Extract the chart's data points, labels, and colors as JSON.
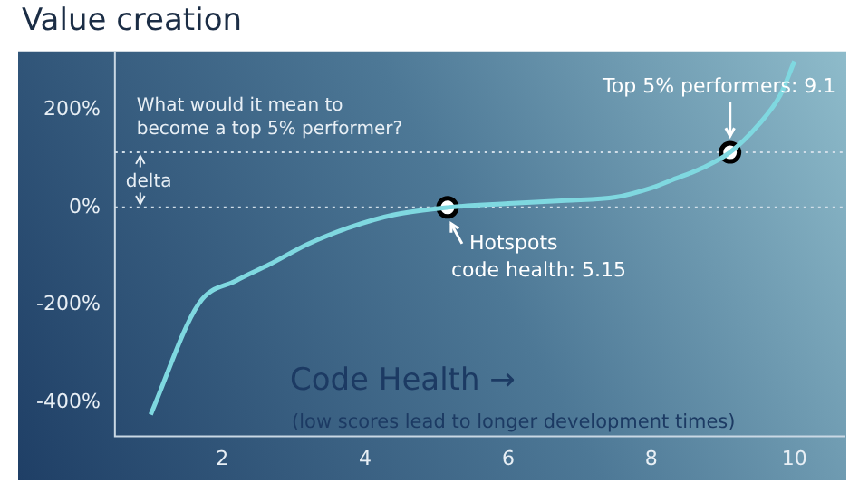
{
  "chart_data": {
    "type": "line",
    "title": "Value creation",
    "xlabel": "Code Health →",
    "x": [
      1,
      1.67,
      2.2,
      2.66,
      3.2,
      3.8,
      4.4,
      5.15,
      6,
      6.8,
      7.5,
      8,
      8.3,
      8.7,
      9.1,
      9.5,
      9.8,
      10
    ],
    "series": [
      {
        "color": "#7fd8e0",
        "values": [
          -425,
          -198,
          -150,
          -117,
          -75,
          -40,
          -15,
          0,
          8,
          14,
          21,
          40,
          57,
          80,
          113,
          170,
          230,
          300
        ],
        "marker": "none"
      },
      {
        "type": "scatter",
        "color": "#ffffff",
        "x": [
          5.15,
          9.1
        ],
        "values": [
          0,
          113
        ],
        "marker": "circle"
      }
    ],
    "xlim": [
      0.5,
      10.7
    ],
    "ylim": [
      -470,
      320
    ],
    "xticks": [
      2,
      4,
      6,
      8,
      10
    ],
    "yticks": [
      {
        "value": 200,
        "label": "200%"
      },
      {
        "value": 0,
        "label": "0%"
      },
      {
        "value": -200,
        "label": "-200%"
      },
      {
        "value": -400,
        "label": "-400%"
      }
    ],
    "grid": false,
    "legend": false,
    "line_style": "solid",
    "ref_lines": [
      {
        "axis": "y",
        "value": 0,
        "color": "#d0dde8",
        "line_style": "dotted"
      },
      {
        "axis": "y",
        "value": 113,
        "color": "#d0dde8",
        "line_style": "dotted"
      }
    ],
    "annotations": [
      "What would it mean to\nbecome a top 5% performer?",
      "delta",
      "(low scores lead to longer development times)",
      {
        "text": "Top 5% performers: 9.1",
        "x": 9.1,
        "y": 113
      },
      {
        "text": "Hotspots\ncode health: 5.15",
        "x": 5.15,
        "y": 0
      }
    ]
  }
}
